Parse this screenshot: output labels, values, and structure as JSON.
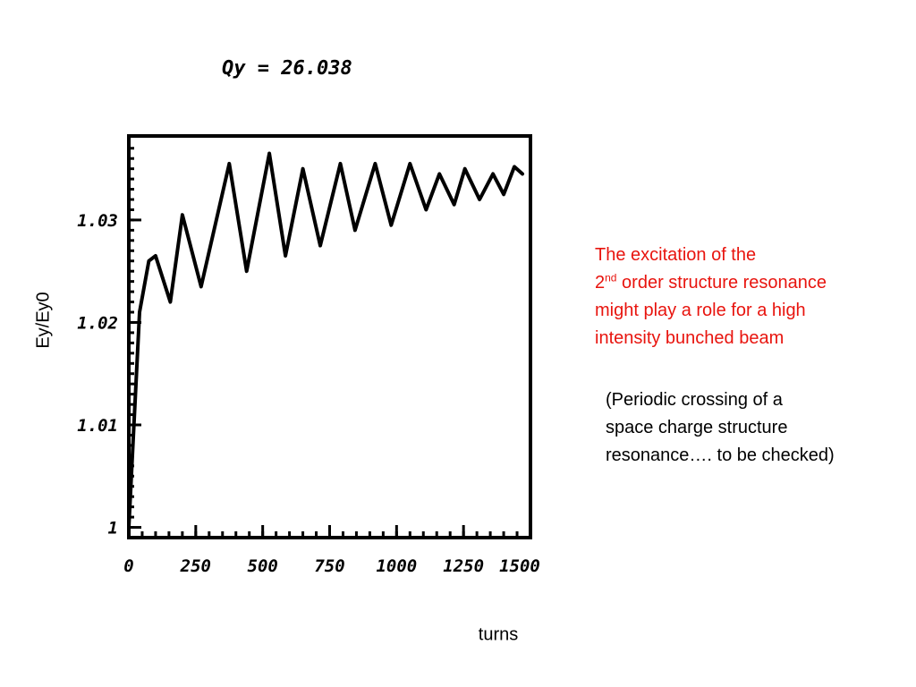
{
  "chart_data": {
    "type": "line",
    "title": "Qy = 26.038",
    "xlabel": "turns",
    "ylabel": "Ey/Ey0",
    "xlim": [
      0,
      1500
    ],
    "ylim": [
      0.999,
      1.0382
    ],
    "x_ticks": [
      0,
      250,
      500,
      750,
      1000,
      1250,
      1500
    ],
    "x_tick_labels": [
      "0",
      "250",
      "500",
      "750",
      "1000",
      "1250",
      "1500"
    ],
    "y_ticks": [
      1.0,
      1.01,
      1.02,
      1.03
    ],
    "y_tick_labels": [
      "1",
      "1.01",
      "1.02",
      "1.03"
    ],
    "grid": false,
    "series": [
      {
        "color": "#000000",
        "x": [
          0,
          40,
          75,
          100,
          155,
          200,
          270,
          375,
          440,
          525,
          585,
          650,
          715,
          790,
          845,
          920,
          980,
          1050,
          1110,
          1160,
          1215,
          1255,
          1310,
          1360,
          1400,
          1440,
          1470
        ],
        "y": [
          1.0,
          1.021,
          1.026,
          1.0265,
          1.022,
          1.0305,
          1.0235,
          1.0355,
          1.025,
          1.0365,
          1.0265,
          1.035,
          1.0275,
          1.0355,
          1.029,
          1.0355,
          1.0295,
          1.0355,
          1.031,
          1.0345,
          1.0315,
          1.035,
          1.032,
          1.0345,
          1.0325,
          1.0352,
          1.0345
        ]
      }
    ]
  },
  "annotations": {
    "red_note": {
      "line1": "The excitation of the",
      "line2_num": "2",
      "line2_sup": "nd",
      "line2_rest": " order structure resonance",
      "line3": "might play a role for a high",
      "line4": "intensity bunched beam",
      "color": "#e8140e"
    },
    "black_note": {
      "line1": "(Periodic crossing of a",
      "line2": "space charge structure",
      "line3": "resonance…. to be checked)"
    }
  }
}
